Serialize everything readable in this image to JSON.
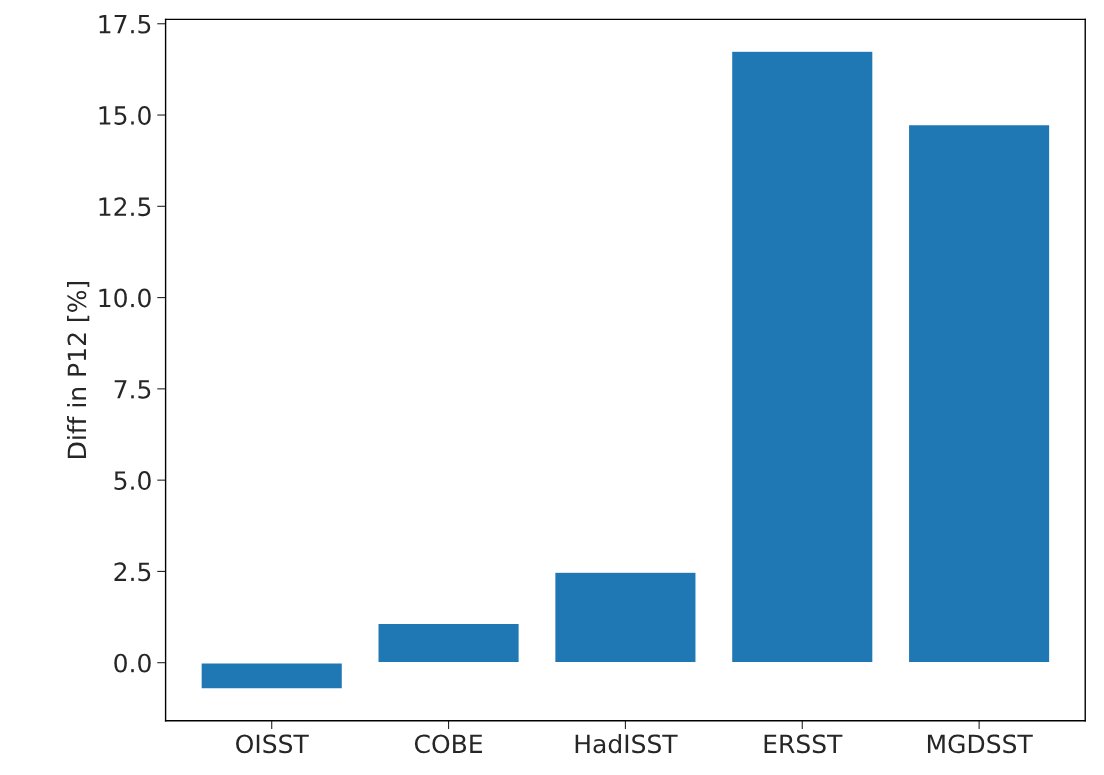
{
  "chart_data": {
    "type": "bar",
    "ylabel": "Diff in P12 [%]",
    "categories": [
      "OISST",
      "COBE",
      "HadISST",
      "ERSST",
      "MGDSST"
    ],
    "values": [
      -0.72,
      1.08,
      2.48,
      16.75,
      14.74
    ],
    "color": "#1f77b4",
    "ylim": [
      -1.59,
      17.62
    ],
    "yticks": [
      {
        "value": 0,
        "label": "0.0"
      },
      2.5,
      {
        "value": 5,
        "label": "5.0"
      },
      7.5,
      {
        "value": 10,
        "label": "10.0"
      },
      12.5,
      {
        "value": 15,
        "label": "15.0"
      },
      17.5
    ],
    "grid": false
  }
}
